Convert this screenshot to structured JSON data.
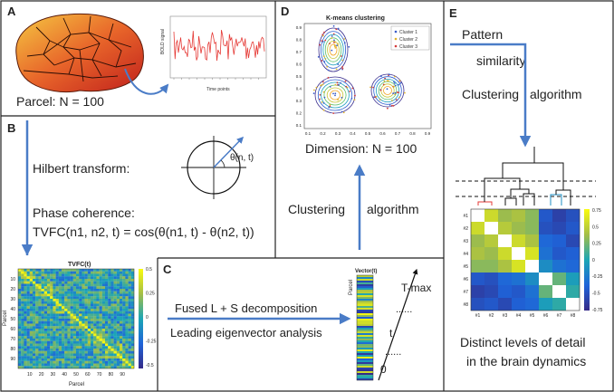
{
  "panels": {
    "A": {
      "letter": "A",
      "caption": "Parcel:  N = 100",
      "plot": {
        "ylabel": "BOLD signal",
        "xlabel": "Time points"
      }
    },
    "B": {
      "letter": "B",
      "hilbert": "Hilbert transform:",
      "theta": "θ(n, t)",
      "phase_title": "Phase coherence:",
      "tvfc_formula": "TVFC(n1, n2, t) = cos(θ(n1, t) - θ(n2, t))",
      "matrix": {
        "title": "TVFC(t)",
        "xlabel": "Parcel",
        "ylabel": "Parcel",
        "ticks": [
          "10",
          "20",
          "30",
          "40",
          "50",
          "60",
          "70",
          "80",
          "90"
        ],
        "colorbar": [
          "0.5",
          "0.25",
          "0",
          "-0.25",
          "-0.5"
        ]
      }
    },
    "C": {
      "letter": "C",
      "line1": "Fused L + S decomposition",
      "line2": "Leading eigenvector analysis",
      "vector_title": "Vector(t)",
      "vector_ylabel": "Parcel",
      "time_labels": [
        "T-max",
        "......",
        "t",
        "......",
        "0"
      ]
    },
    "D": {
      "letter": "D",
      "plot_title": "K-means clustering",
      "legend": [
        "Cluster 1",
        "Cluster 2",
        "Cluster 3"
      ],
      "xticks": [
        "0.1",
        "0.2",
        "0.3",
        "0.4",
        "0.5",
        "0.6",
        "0.7",
        "0.8",
        "0.9"
      ],
      "yticks": [
        "0.9",
        "0.8",
        "0.7",
        "0.6",
        "0.5",
        "0.4",
        "0.3",
        "0.2",
        "0.1"
      ],
      "dimension": "Dimension:  N = 100",
      "clustering": "Clustering",
      "algorithm": "algorithm"
    },
    "E": {
      "letter": "E",
      "pattern": "Pattern",
      "similarity": "similarity",
      "clustering": "Clustering",
      "algorithm": "algorithm",
      "row_labels": [
        "#1",
        "#2",
        "#3",
        "#4",
        "#5",
        "#6",
        "#7",
        "#8"
      ],
      "col_labels": [
        "#1",
        "#2",
        "#3",
        "#4",
        "#5",
        "#6",
        "#7",
        "#8"
      ],
      "colorbar": [
        "0.75",
        "0.5",
        "0.25",
        "0",
        "-0.25",
        "-0.5",
        "-0.75"
      ],
      "matrix": [
        [
          null,
          0.55,
          0.35,
          0.4,
          0.3,
          -0.45,
          -0.6,
          -0.5
        ],
        [
          0.55,
          null,
          0.45,
          0.35,
          0.3,
          -0.5,
          -0.55,
          -0.45
        ],
        [
          0.35,
          0.45,
          null,
          0.55,
          0.4,
          -0.35,
          -0.4,
          -0.55
        ],
        [
          0.4,
          0.35,
          0.55,
          null,
          0.6,
          -0.3,
          -0.45,
          -0.4
        ],
        [
          0.3,
          0.3,
          0.4,
          0.6,
          null,
          -0.15,
          -0.3,
          -0.35
        ],
        [
          -0.45,
          -0.5,
          -0.35,
          -0.3,
          -0.15,
          null,
          0.2,
          -0.05
        ],
        [
          -0.6,
          -0.55,
          -0.4,
          -0.45,
          -0.3,
          0.2,
          null,
          0.05
        ],
        [
          -0.5,
          -0.45,
          -0.55,
          -0.4,
          -0.35,
          -0.05,
          0.05,
          null
        ]
      ],
      "caption1": "Distinct levels of detail",
      "caption2": "in the brain dynamics"
    }
  },
  "colors": {
    "arrow": "#4a7cc7",
    "border": "#222222"
  }
}
